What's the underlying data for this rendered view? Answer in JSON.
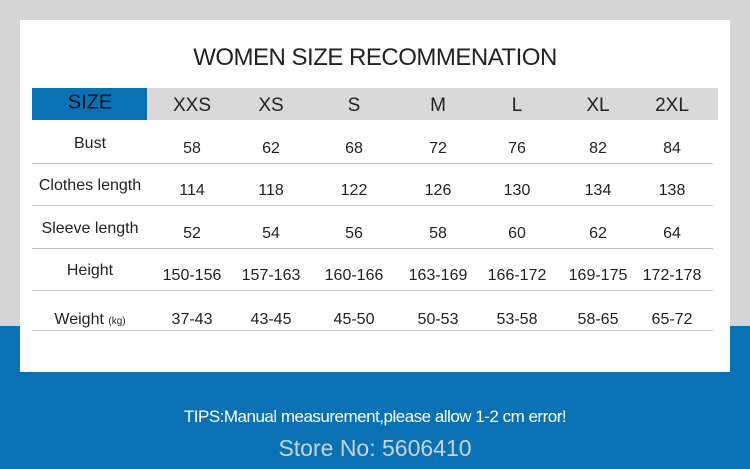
{
  "header": {
    "title": "WOMEN SIZE RECOMMENATION"
  },
  "table": {
    "columns": [
      "SIZE",
      "XXS",
      "XS",
      "S",
      "M",
      "L",
      "XL",
      "2XL"
    ],
    "rows": [
      [
        "Bust",
        "58",
        "62",
        "68",
        "72",
        "76",
        "82",
        "84"
      ],
      [
        "Clothes length",
        "114",
        "118",
        "122",
        "126",
        "130",
        "134",
        "138"
      ],
      [
        "Sleeve length",
        "52",
        "54",
        "56",
        "58",
        "60",
        "62",
        "64"
      ],
      [
        "Height",
        "150-156",
        "157-163",
        "160-166",
        "163-169",
        "166-172",
        "169-175",
        "172-178"
      ],
      [
        "Weight",
        "37-43",
        "43-45",
        "45-50",
        "50-53",
        "53-58",
        "58-65",
        "65-72"
      ]
    ],
    "weight_unit": "(kg)"
  },
  "footer": {
    "tips": "TIPS:Manual measurement,please allow 1-2 cm error!",
    "store": "Store No: 5606410"
  }
}
